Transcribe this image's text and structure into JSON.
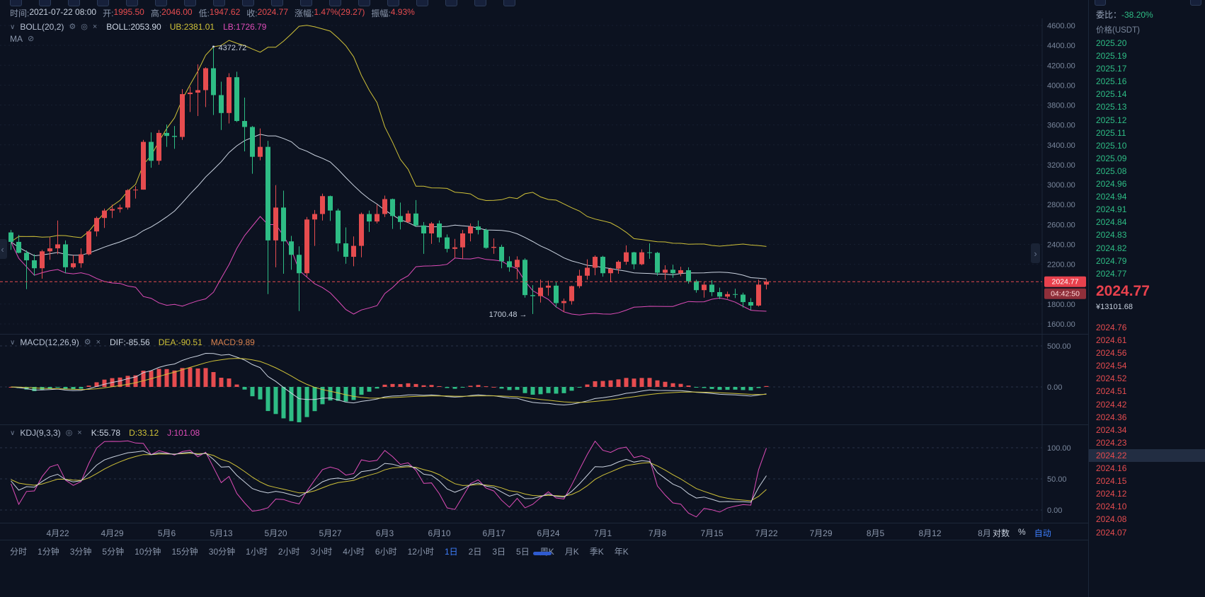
{
  "icons": {
    "gear": "⚙",
    "eye": "◎",
    "eye_off": "⊘",
    "close": "×",
    "chevron_down": "∨",
    "pan_left": "‹",
    "pan_right": "›"
  },
  "info_bar": {
    "items": [
      {
        "label": "时间:",
        "value": "2021-07-22 08:00",
        "tone": "plain"
      },
      {
        "label": "开:",
        "value": "1995.50",
        "tone": "up"
      },
      {
        "label": "高:",
        "value": "2046.00",
        "tone": "up"
      },
      {
        "label": "低:",
        "value": "1947.62",
        "tone": "up"
      },
      {
        "label": "收:",
        "value": "2024.77",
        "tone": "up"
      },
      {
        "label": "涨幅:",
        "value": "1.47%(29.27)",
        "tone": "up"
      },
      {
        "label": "振幅:",
        "value": "4.93%",
        "tone": "up"
      }
    ]
  },
  "boll_header": {
    "name": "BOLL(20,2)",
    "values": [
      {
        "text": "BOLL:2053.90",
        "tone": "white"
      },
      {
        "text": "UB:2381.01",
        "tone": "yellow"
      },
      {
        "text": "LB:1726.79",
        "tone": "magenta"
      }
    ]
  },
  "ma_header": {
    "name": "MA"
  },
  "macd_header": {
    "name": "MACD(12,26,9)",
    "values": [
      {
        "text": "DIF:-85.56",
        "tone": "white"
      },
      {
        "text": "DEA:-90.51",
        "tone": "yellow"
      },
      {
        "text": "MACD:9.89",
        "tone": "orange"
      }
    ]
  },
  "kdj_header": {
    "name": "KDJ(9,3,3)",
    "values": [
      {
        "text": "K:55.78",
        "tone": "white"
      },
      {
        "text": "D:33.12",
        "tone": "yellow"
      },
      {
        "text": "J:101.08",
        "tone": "magenta"
      }
    ]
  },
  "price_line": {
    "price": "2024.77",
    "countdown": "04:42:50"
  },
  "annotations": {
    "high_label": "4372.72",
    "high_index": 26,
    "high_price": 4372.72,
    "low_label": "1700.48 →",
    "low_index": 67,
    "low_price": 1700.48
  },
  "chart_data": {
    "type": "candlestick",
    "interval": "1日",
    "ylim": [
      1600,
      4600
    ],
    "y_ticks": [
      "4600.00",
      "4400.00",
      "4200.00",
      "4000.00",
      "3800.00",
      "3600.00",
      "3400.00",
      "3200.00",
      "3000.00",
      "2800.00",
      "2600.00",
      "2400.00",
      "2200.00",
      "2000.00",
      "1800.00",
      "1600.00"
    ],
    "x_ticks": [
      {
        "label": "4月22",
        "index": 6
      },
      {
        "label": "4月29",
        "index": 13
      },
      {
        "label": "5月6",
        "index": 20
      },
      {
        "label": "5月13",
        "index": 27
      },
      {
        "label": "5月20",
        "index": 34
      },
      {
        "label": "5月27",
        "index": 41
      },
      {
        "label": "6月3",
        "index": 48
      },
      {
        "label": "6月10",
        "index": 55
      },
      {
        "label": "6月17",
        "index": 62
      },
      {
        "label": "6月24",
        "index": 69
      },
      {
        "label": "7月1",
        "index": 76
      },
      {
        "label": "7月8",
        "index": 83
      },
      {
        "label": "7月15",
        "index": 90
      },
      {
        "label": "7月22",
        "index": 97
      },
      {
        "label": "7月29",
        "index": 104
      },
      {
        "label": "8月5",
        "index": 111
      },
      {
        "label": "8月12",
        "index": 118
      },
      {
        "label": "8月",
        "index": 125
      }
    ],
    "macd_ticks": [
      {
        "label": "500.00",
        "value": 500
      },
      {
        "label": "0.00",
        "value": 0
      }
    ],
    "kdj_ticks": [
      {
        "label": "100.00",
        "value": 100
      },
      {
        "label": "50.00",
        "value": 50
      },
      {
        "label": "0.00",
        "value": 0
      }
    ],
    "indicators": {
      "boll": {
        "period": 20,
        "mult": 2
      },
      "macd": [
        12,
        26,
        9
      ],
      "kdj": [
        9,
        3,
        3
      ]
    },
    "ohlc": [
      [
        2520,
        2545,
        2345,
        2425
      ],
      [
        2425,
        2495,
        2310,
        2315
      ],
      [
        2315,
        2340,
        1950,
        2240
      ],
      [
        2240,
        2300,
        2085,
        2160
      ],
      [
        2160,
        2345,
        2055,
        2330
      ],
      [
        2330,
        2470,
        2245,
        2360
      ],
      [
        2360,
        2640,
        2300,
        2400
      ],
      [
        2400,
        2440,
        2110,
        2170
      ],
      [
        2170,
        2290,
        2155,
        2210
      ],
      [
        2210,
        2360,
        2165,
        2300
      ],
      [
        2300,
        2540,
        2290,
        2530
      ],
      [
        2530,
        2680,
        2480,
        2665
      ],
      [
        2665,
        2760,
        2565,
        2740
      ],
      [
        2740,
        2800,
        2665,
        2755
      ],
      [
        2755,
        2800,
        2720,
        2770
      ],
      [
        2770,
        2955,
        2750,
        2945
      ],
      [
        2945,
        2985,
        2860,
        2950
      ],
      [
        2950,
        3450,
        2950,
        3430
      ],
      [
        3430,
        3525,
        3170,
        3240
      ],
      [
        3240,
        3550,
        3200,
        3520
      ],
      [
        3520,
        3605,
        3380,
        3490
      ],
      [
        3490,
        3590,
        3360,
        3480
      ],
      [
        3480,
        3960,
        3450,
        3910
      ],
      [
        3910,
        3985,
        3730,
        3925
      ],
      [
        3925,
        4210,
        3690,
        3950
      ],
      [
        3950,
        4180,
        3780,
        4170
      ],
      [
        4170,
        4372.72,
        3700,
        3900
      ],
      [
        3900,
        4035,
        3550,
        3720
      ],
      [
        3720,
        4120,
        3615,
        4080
      ],
      [
        4080,
        4135,
        3630,
        3640
      ],
      [
        3640,
        3875,
        3335,
        3580
      ],
      [
        3580,
        3590,
        3110,
        3280
      ],
      [
        3280,
        3565,
        3245,
        3380
      ],
      [
        3380,
        3440,
        1900,
        2440
      ],
      [
        2440,
        2995,
        2170,
        2770
      ],
      [
        2770,
        2940,
        2105,
        2430
      ],
      [
        2430,
        2485,
        2145,
        2295
      ],
      [
        2295,
        2380,
        1730,
        2110
      ],
      [
        2110,
        2675,
        2075,
        2650
      ],
      [
        2650,
        2745,
        2385,
        2705
      ],
      [
        2705,
        2910,
        2640,
        2885
      ],
      [
        2885,
        2890,
        2635,
        2740
      ],
      [
        2740,
        2760,
        2330,
        2410
      ],
      [
        2410,
        2570,
        2205,
        2275
      ],
      [
        2275,
        2480,
        2180,
        2385
      ],
      [
        2385,
        2720,
        2270,
        2705
      ],
      [
        2705,
        2740,
        2525,
        2630
      ],
      [
        2630,
        2800,
        2610,
        2705
      ],
      [
        2705,
        2890,
        2675,
        2855
      ],
      [
        2855,
        2860,
        2555,
        2685
      ],
      [
        2685,
        2820,
        2550,
        2625
      ],
      [
        2625,
        2740,
        2615,
        2710
      ],
      [
        2710,
        2845,
        2575,
        2590
      ],
      [
        2590,
        2625,
        2305,
        2510
      ],
      [
        2510,
        2625,
        2405,
        2610
      ],
      [
        2610,
        2640,
        2420,
        2470
      ],
      [
        2470,
        2500,
        2320,
        2355
      ],
      [
        2355,
        2455,
        2265,
        2370
      ],
      [
        2370,
        2545,
        2255,
        2510
      ],
      [
        2510,
        2610,
        2430,
        2580
      ],
      [
        2580,
        2640,
        2500,
        2545
      ],
      [
        2545,
        2560,
        2355,
        2365
      ],
      [
        2365,
        2460,
        2305,
        2375
      ],
      [
        2375,
        2395,
        2160,
        2230
      ],
      [
        2230,
        2280,
        2125,
        2170
      ],
      [
        2170,
        2280,
        2050,
        2245
      ],
      [
        2245,
        2260,
        1865,
        1890
      ],
      [
        1890,
        1990,
        1700.48,
        1880
      ],
      [
        1880,
        2045,
        1815,
        1965
      ],
      [
        1965,
        2035,
        1885,
        1985
      ],
      [
        1985,
        2020,
        1765,
        1810
      ],
      [
        1810,
        1855,
        1720,
        1830
      ],
      [
        1830,
        1985,
        1795,
        1980
      ],
      [
        1980,
        2145,
        1960,
        2085
      ],
      [
        2085,
        2250,
        2045,
        2165
      ],
      [
        2165,
        2290,
        2090,
        2275
      ],
      [
        2275,
        2285,
        2075,
        2110
      ],
      [
        2110,
        2165,
        2020,
        2155
      ],
      [
        2155,
        2240,
        2105,
        2225
      ],
      [
        2225,
        2390,
        2195,
        2320
      ],
      [
        2320,
        2325,
        2150,
        2200
      ],
      [
        2200,
        2350,
        2190,
        2320
      ],
      [
        2320,
        2410,
        2255,
        2315
      ],
      [
        2315,
        2325,
        2085,
        2115
      ],
      [
        2115,
        2190,
        2045,
        2145
      ],
      [
        2145,
        2195,
        2065,
        2110
      ],
      [
        2110,
        2175,
        2080,
        2140
      ],
      [
        2140,
        2170,
        2005,
        2030
      ],
      [
        2030,
        2045,
        1915,
        1940
      ],
      [
        1940,
        2020,
        1865,
        1995
      ],
      [
        1995,
        2040,
        1880,
        1920
      ],
      [
        1920,
        1965,
        1850,
        1875
      ],
      [
        1875,
        1925,
        1855,
        1900
      ],
      [
        1900,
        1955,
        1860,
        1895
      ],
      [
        1895,
        1915,
        1765,
        1820
      ],
      [
        1820,
        1860,
        1740,
        1785
      ],
      [
        1785,
        2045,
        1775,
        1995.5
      ],
      [
        1995.5,
        2046,
        1947.62,
        2024.77
      ]
    ]
  },
  "axis_controls": [
    {
      "text": "对数",
      "tone": "plain"
    },
    {
      "text": "%",
      "tone": "plain"
    },
    {
      "text": "自动",
      "tone": "blue"
    }
  ],
  "timeframe_bar": {
    "items": [
      "分时",
      "1分钟",
      "3分钟",
      "5分钟",
      "10分钟",
      "15分钟",
      "30分钟",
      "1小时",
      "2小时",
      "3小时",
      "4小时",
      "6小时",
      "12小时",
      "1日",
      "2日",
      "3日",
      "5日",
      "周K",
      "月K",
      "季K",
      "年K"
    ],
    "active": "1日"
  },
  "orderbook": {
    "weibi_label": "委比：",
    "weibi_value": "-38.20%",
    "price_header": "价格(USDT)",
    "asks": [
      "2025.20",
      "2025.19",
      "2025.17",
      "2025.16",
      "2025.14",
      "2025.13",
      "2025.12",
      "2025.11",
      "2025.10",
      "2025.09",
      "2025.08",
      "2024.96",
      "2024.94",
      "2024.91",
      "2024.84",
      "2024.83",
      "2024.82",
      "2024.79",
      "2024.77"
    ],
    "last_price": "2024.77",
    "last_price_cny": "¥13101.68",
    "bids": [
      "2024.76",
      "2024.61",
      "2024.56",
      "2024.54",
      "2024.52",
      "2024.51",
      "2024.42",
      "2024.36",
      "2024.34",
      "2024.23",
      "2024.22",
      "2024.16",
      "2024.15",
      "2024.12",
      "2024.10",
      "2024.08",
      "2024.07"
    ],
    "highlighted_bid_index": 10
  },
  "colors": {
    "up": "#e64c4f",
    "down": "#2ebd85",
    "tag_bg": "#e8414d",
    "tag_bg2": "#8f2f3a",
    "yellow": "#cfc138",
    "white_line": "#cbd3e0",
    "magenta": "#de4cb8",
    "orange": "#d8824f",
    "accent": "#3e7efc",
    "grid": "#161f30",
    "grid2": "#273349",
    "sep": "#1c2739",
    "axis_text": "#7a879c",
    "text_bright": "#c6cfdd"
  }
}
